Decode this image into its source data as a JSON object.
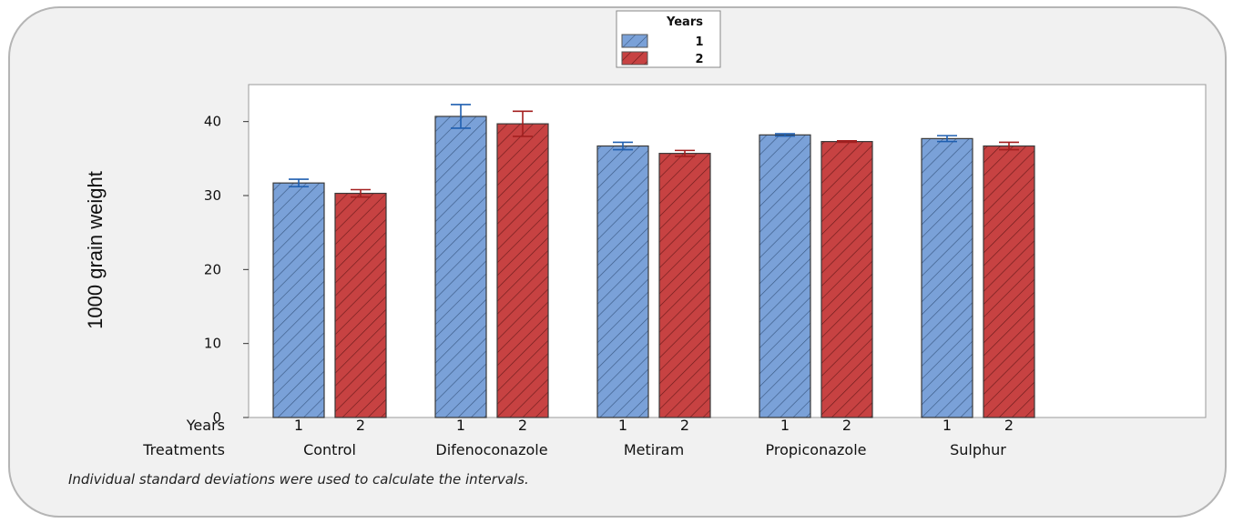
{
  "colors": {
    "series1": "#7aa1d8",
    "series2": "#c74242",
    "err1": "#1f5fb0",
    "err2": "#a31f1f",
    "frame": "#b5b5b5",
    "panel": "#f1f1f1"
  },
  "footnote": "Individual standard deviations were used to calculate the intervals.",
  "chart_data": {
    "type": "bar",
    "ylabel": "1000 grain weight",
    "ylim": [
      0,
      45
    ],
    "yticks": [
      0,
      10,
      20,
      30,
      40
    ],
    "row_labels": {
      "years": "Years",
      "treatments": "Treatments"
    },
    "categories": [
      "Control",
      "Difenoconazole",
      "Metiram",
      "Propiconazole",
      "Sulphur"
    ],
    "legend": {
      "title": "Years",
      "placement": "top-center"
    },
    "series": [
      {
        "name": "1",
        "values": [
          31.7,
          40.7,
          36.7,
          38.2,
          37.7
        ],
        "err": [
          0.5,
          1.6,
          0.5,
          0.15,
          0.4
        ]
      },
      {
        "name": "2",
        "values": [
          30.3,
          39.7,
          35.7,
          37.3,
          36.7
        ],
        "err": [
          0.5,
          1.7,
          0.4,
          0.1,
          0.5
        ]
      }
    ]
  }
}
